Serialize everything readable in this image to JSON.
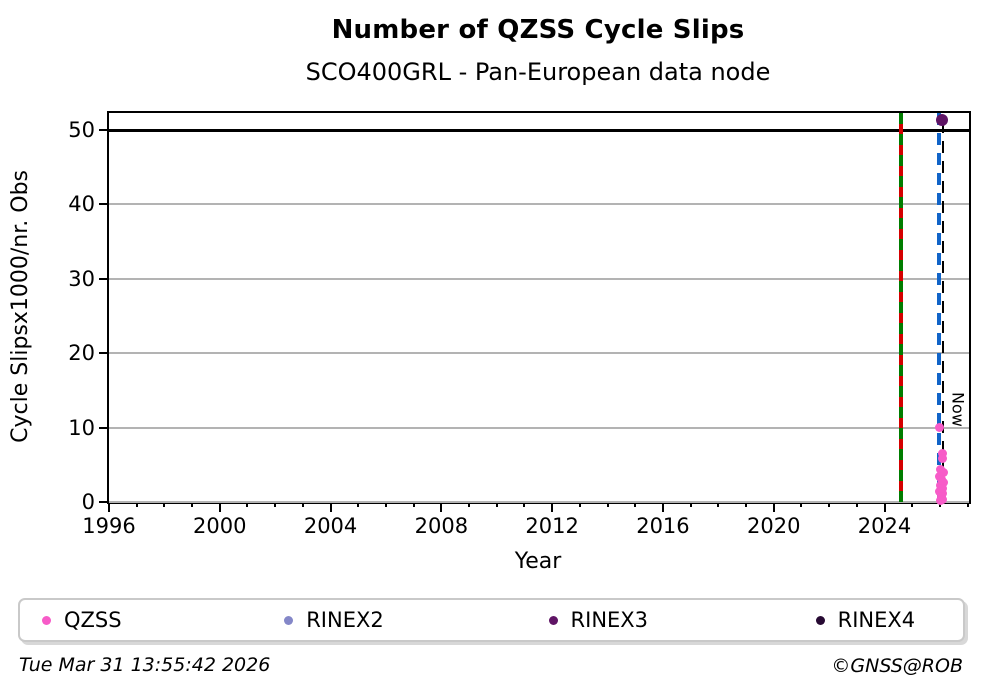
{
  "page": {
    "title": "Number of QZSS Cycle Slips",
    "subtitle": "SCO400GRL - Pan-European data node"
  },
  "chart_data": {
    "type": "scatter",
    "title": "Number of QZSS Cycle Slips",
    "subtitle": "SCO400GRL - Pan-European data node",
    "xlabel": "Year",
    "ylabel": "Cycle Slipsx1000/nr. Obs",
    "xlim": [
      1996,
      2027.05
    ],
    "ylim": [
      0,
      52.3
    ],
    "xticks": [
      1996,
      2000,
      2004,
      2008,
      2012,
      2016,
      2020,
      2024
    ],
    "xminor": {
      "from": 1996,
      "to": 2027,
      "step": 1
    },
    "yticks": [
      0,
      10,
      20,
      30,
      40,
      50
    ],
    "gridlines_y": [
      0,
      10,
      20,
      30,
      40
    ],
    "grid_color": "#b3b3b3",
    "cap_line_y": 50,
    "cap_line_color": "#000000",
    "vlines": [
      {
        "x": 2024.6,
        "style": "green-red",
        "width": 4,
        "label": "",
        "colors": [
          "#007d00",
          "#d40000"
        ]
      },
      {
        "x": 2026.02,
        "style": "blue-black",
        "width": 7,
        "label": "Now",
        "label_y": 14.8,
        "colors": [
          "#1164c8",
          "#000000"
        ]
      }
    ],
    "series": [
      {
        "name": "QZSS",
        "color": "#f75bc8",
        "dot_size": 9,
        "points": [
          {
            "x": 2025.97,
            "y": 10.0
          },
          {
            "x": 2026.08,
            "y": 6.5
          },
          {
            "x": 2026.08,
            "y": 5.9
          },
          {
            "x": 2026.02,
            "y": 4.4
          },
          {
            "x": 2026.12,
            "y": 3.9
          },
          {
            "x": 2026.0,
            "y": 3.4
          },
          {
            "x": 2026.07,
            "y": 3.0
          },
          {
            "x": 2026.13,
            "y": 2.6
          },
          {
            "x": 2026.02,
            "y": 2.2
          },
          {
            "x": 2026.08,
            "y": 1.8
          },
          {
            "x": 2026.0,
            "y": 1.4
          },
          {
            "x": 2026.1,
            "y": 1.1
          },
          {
            "x": 2026.04,
            "y": 0.7
          },
          {
            "x": 2026.1,
            "y": 0.4
          },
          {
            "x": 2026.03,
            "y": 0.15
          }
        ]
      },
      {
        "name": "RINEX2",
        "color": "#8487c8",
        "dot_size": 9,
        "points": []
      },
      {
        "name": "RINEX3",
        "color": "#5f1465",
        "dot_size": 12,
        "points": [
          {
            "x": 2026.07,
            "y": 51.3
          }
        ]
      },
      {
        "name": "RINEX4",
        "color": "#270a33",
        "dot_size": 9,
        "points": []
      }
    ],
    "legend_position": "bottom"
  },
  "footer": {
    "left": "Tue Mar 31 13:55:42 2026",
    "right": "©GNSS@ROB"
  }
}
